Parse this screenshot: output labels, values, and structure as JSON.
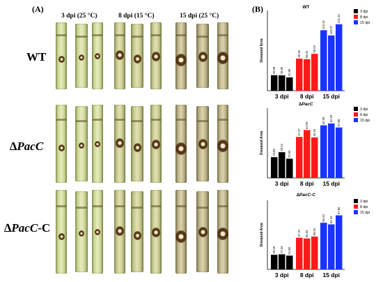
{
  "panel_a": {
    "label": "(A)",
    "columns": [
      "3 dpi (25 °C)",
      "8 dpi (15 °C)",
      "15 dpi (25 °C)"
    ],
    "rows": [
      {
        "plain": "WT",
        "italic": "",
        "suffix": ""
      },
      {
        "plain": "∆",
        "italic": "PacC",
        "suffix": ""
      },
      {
        "plain": "∆",
        "italic": "PacC",
        "suffix": "-C"
      }
    ]
  },
  "panel_b": {
    "label": "(B)"
  },
  "chart_data": [
    {
      "type": "bar",
      "title": "WT",
      "ylabel": "Diseased Area",
      "ylim": [
        0,
        150
      ],
      "yticks": [],
      "group_labels": [
        "3 dpi",
        "8 dpi",
        "15 dpi"
      ],
      "legend": [
        "3 dpi",
        "8 dpi",
        "15 dpi"
      ],
      "colors": [
        "#000000",
        "#ff1a1a",
        "#1a33ff"
      ],
      "values": [
        [
          29.08,
          28.86,
          24.99
        ],
        [
          60.05,
          59.04,
          69.03
        ],
        [
          113.1,
          103.37,
          124.23
        ]
      ],
      "value_labels": [
        [
          "29.08",
          "28.86",
          "24.99"
        ],
        [
          "60.05",
          "59.04",
          "69.03"
        ],
        [
          "113.10",
          "103.37",
          "124.23"
        ]
      ]
    },
    {
      "type": "bar",
      "title": "∆PacC",
      "ylabel": "Diseased Area",
      "ylim": [
        0,
        80
      ],
      "yticks": [],
      "group_labels": [
        "3 dpi",
        "8 dpi",
        "15 dpi"
      ],
      "legend": [
        "3 dpi",
        "8 dpi",
        "15 dpi"
      ],
      "colors": [
        "#000000",
        "#ff1a1a",
        "#1a33ff"
      ],
      "values": [
        [
          23.89,
          29.54,
          22.09
        ],
        [
          47.07,
          54.95,
          46.54
        ],
        [
          60.39,
          62.48,
          57.89
        ]
      ],
      "value_labels": [
        [
          "23.89",
          "29.54",
          "22.09"
        ],
        [
          "47.07",
          "54.95",
          "46.54"
        ],
        [
          "60.39",
          "62.48",
          "57.89"
        ]
      ]
    },
    {
      "type": "bar",
      "title": "∆PacC-C",
      "ylabel": "Diseased Area",
      "ylim": [
        0,
        125
      ],
      "yticks": [],
      "group_labels": [
        "3 dpi",
        "8 dpi",
        "15 dpi"
      ],
      "legend": [
        "3 dpi",
        "8 dpi",
        "15 dpi"
      ],
      "colors": [
        "#000000",
        "#ff1a1a",
        "#1a33ff"
      ],
      "values": [
        [
          26.59,
          27.34,
          24.99
        ],
        [
          57.37,
          56.03,
          59.54
        ],
        [
          84.43,
          81.54,
          97.85
        ]
      ],
      "value_labels": [
        [
          "26.59",
          "27.34",
          "24.99"
        ],
        [
          "57.37",
          "56.03",
          "59.54"
        ],
        [
          "84.43",
          "81.54",
          "97.85"
        ]
      ]
    }
  ]
}
